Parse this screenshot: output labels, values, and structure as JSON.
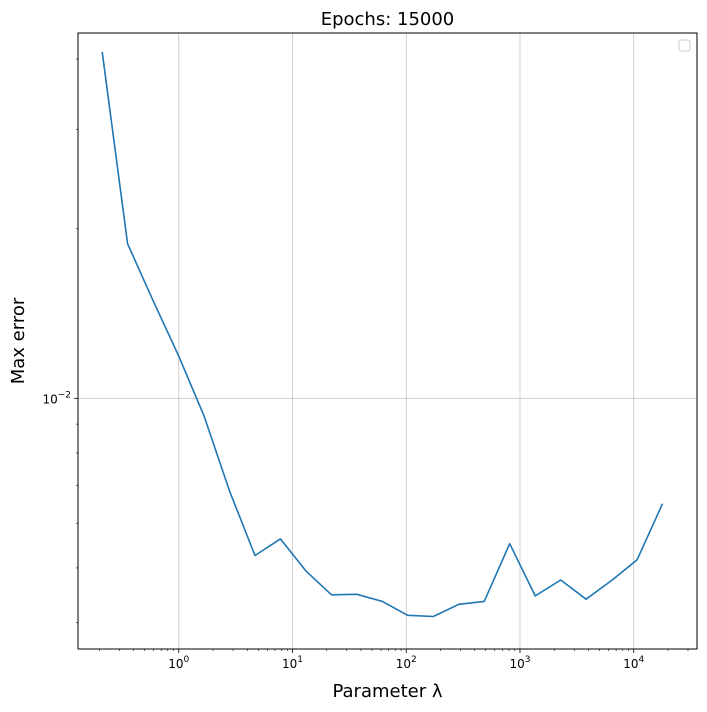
{
  "chart_data": {
    "type": "line",
    "title": "Epochs: 15000",
    "xlabel": "Parameter λ",
    "ylabel": "Max error",
    "xscale": "log",
    "yscale": "log",
    "xlim": [
      0.13,
      36000
    ],
    "ylim": [
      0.00359,
      0.0445
    ],
    "grid": true,
    "legend": "top-right",
    "x_ticks": [
      {
        "value": 1,
        "base": "10",
        "exp": "0"
      },
      {
        "value": 10,
        "base": "10",
        "exp": "1"
      },
      {
        "value": 100,
        "base": "10",
        "exp": "2"
      },
      {
        "value": 1000,
        "base": "10",
        "exp": "3"
      },
      {
        "value": 10000,
        "base": "10",
        "exp": "4"
      }
    ],
    "y_ticks": [
      {
        "value": 0.01,
        "base": "10",
        "exp": "−2"
      }
    ],
    "series": [
      {
        "color": "#1f77b4",
        "x": [
          0.212,
          0.355,
          0.595,
          0.997,
          1.67,
          2.79,
          4.68,
          7.83,
          13.1,
          22.0,
          36.8,
          61.6,
          103,
          173,
          290,
          485,
          812,
          1360,
          2280,
          3810,
          6390,
          10700,
          17900
        ],
        "y": [
          0.0412,
          0.0188,
          0.0149,
          0.0119,
          0.0093,
          0.00685,
          0.00526,
          0.00563,
          0.00494,
          0.00448,
          0.00449,
          0.00436,
          0.00412,
          0.0041,
          0.00431,
          0.00436,
          0.00552,
          0.00446,
          0.00476,
          0.0044,
          0.00475,
          0.00517,
          0.0065
        ]
      }
    ]
  }
}
